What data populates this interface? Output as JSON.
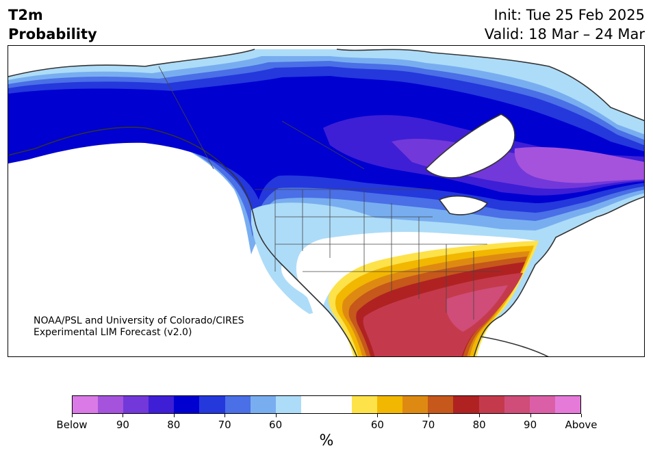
{
  "header": {
    "title_line1": "T2m",
    "title_line2": "Probability",
    "init_label": "Init: Tue 25 Feb 2025",
    "valid_label": "Valid: 18 Mar – 24 Mar"
  },
  "credit": {
    "line1": "NOAA/PSL and University of Colorado/CIRES",
    "line2": "Experimental LIM Forecast (v2.0)"
  },
  "colorbar": {
    "colors": [
      "#d97ae6",
      "#a553dc",
      "#7338d9",
      "#3e1fd6",
      "#0000d0",
      "#2438dc",
      "#4a6fe6",
      "#78aef0",
      "#addcf8",
      "#ffffff",
      "#ffffff",
      "#fde24a",
      "#f2b700",
      "#de8a12",
      "#c5581a",
      "#b02222",
      "#c43a4c",
      "#cf4d78",
      "#da5fa6",
      "#e57ad9"
    ],
    "tick_labels": [
      "Below",
      "90",
      "80",
      "70",
      "60",
      "60",
      "70",
      "80",
      "90",
      "Above"
    ],
    "units": "%"
  },
  "map": {
    "below_colors": {
      "b60": "#addcf8",
      "b65": "#78aef0",
      "b70": "#4a6fe6",
      "b75": "#2438dc",
      "b80": "#0000d0",
      "b85": "#3e1fd6",
      "b90": "#7338d9",
      "b95": "#a553dc"
    },
    "above_colors": {
      "a60": "#fde24a",
      "a65": "#f2b700",
      "a70": "#de8a12",
      "a75": "#c5581a",
      "a80": "#b02222",
      "a85": "#c43a4c",
      "a90": "#cf4d78"
    }
  }
}
